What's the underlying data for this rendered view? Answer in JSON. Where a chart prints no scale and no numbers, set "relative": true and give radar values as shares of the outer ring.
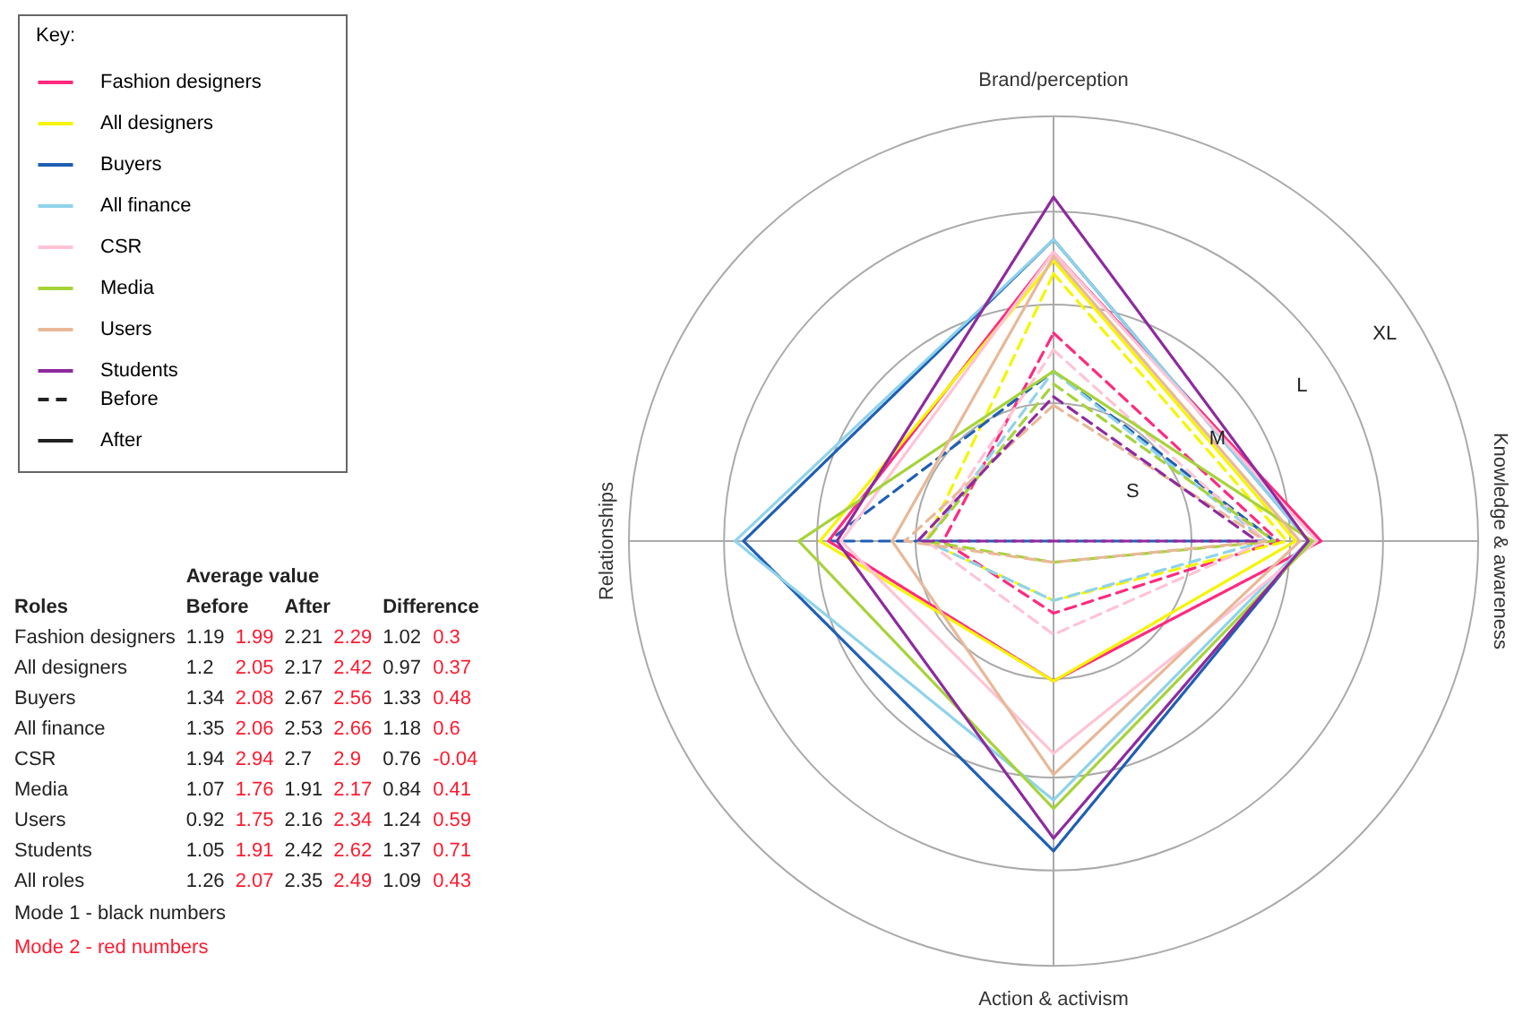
{
  "chart_data": {
    "type": "radar",
    "relative": true,
    "grid": true,
    "legend": "top left",
    "legend_title": "Key:",
    "categories": [
      "Brand/perception",
      "Knowledge & awareness",
      "Action & activism",
      "Relationships"
    ],
    "series": [
      {
        "name": "Fashion designers",
        "color": "#ff2a7f",
        "line_style": "dashed",
        "values": [
          0.49,
          0.53,
          0.17,
          0.26
        ]
      },
      {
        "name": "All designers",
        "color": "#f5f500",
        "line_style": "dashed",
        "values": [
          0.63,
          0.55,
          0.14,
          0.3
        ]
      },
      {
        "name": "Buyers",
        "color": "#1f5fb4",
        "line_style": "dashed",
        "values": [
          0.4,
          0.52,
          0,
          0.53
        ]
      },
      {
        "name": "All finance",
        "color": "#8fd3ea",
        "line_style": "dashed",
        "values": [
          0.4,
          0.5,
          0.14,
          0.3
        ]
      },
      {
        "name": "CSR",
        "color": "#ffc4d4",
        "line_style": "dashed",
        "values": [
          0.45,
          0.5,
          0.22,
          0.3
        ]
      },
      {
        "name": "Media",
        "color": "#a6d33a",
        "line_style": "dashed",
        "values": [
          0.37,
          0.52,
          0.05,
          0.3
        ]
      },
      {
        "name": "Users",
        "color": "#e8b898",
        "line_style": "dashed",
        "values": [
          0.32,
          0.5,
          0.05,
          0.35
        ]
      },
      {
        "name": "Students",
        "color": "#8e2a9e",
        "line_style": "dashed",
        "values": [
          0.34,
          0.48,
          0,
          0.32
        ]
      },
      {
        "color": "#ff2a7f",
        "line_style": "solid",
        "values": [
          0.68,
          0.63,
          0.33,
          0.53
        ]
      },
      {
        "color": "#f5f500",
        "line_style": "solid",
        "values": [
          0.66,
          0.57,
          0.33,
          0.55
        ]
      },
      {
        "color": "#1f5fb4",
        "line_style": "solid",
        "values": [
          0.71,
          0.6,
          0.73,
          0.73
        ]
      },
      {
        "color": "#8fd3ea",
        "line_style": "solid",
        "values": [
          0.71,
          0.6,
          0.61,
          0.75
        ]
      },
      {
        "color": "#ffc4d4",
        "line_style": "solid",
        "values": [
          0.68,
          0.62,
          0.5,
          0.5
        ]
      },
      {
        "color": "#a6d33a",
        "line_style": "solid",
        "values": [
          0.4,
          0.61,
          0.63,
          0.6
        ]
      },
      {
        "color": "#e8b898",
        "line_style": "solid",
        "values": [
          0.67,
          0.58,
          0.55,
          0.38
        ]
      },
      {
        "color": "#8e2a9e",
        "line_style": "solid",
        "values": [
          0.81,
          0.6,
          0.7,
          0.51
        ]
      }
    ],
    "annotations": [
      "Before",
      "After",
      "S",
      "M",
      "L",
      "XL",
      "Average value",
      "Roles",
      "Before",
      "After",
      "Difference",
      "Fashion designers",
      "1.19",
      "1.99",
      "2.21",
      "2.29",
      "1.02",
      "0.3",
      "All designers",
      "1.2",
      "2.05",
      "2.17",
      "2.42",
      "0.97",
      "0.37",
      "Buyers",
      "1.34",
      "2.08",
      "2.67",
      "2.56",
      "1.33",
      "0.48",
      "All finance",
      "1.35",
      "2.06",
      "2.53",
      "2.66",
      "1.18",
      "0.6",
      "CSR",
      "1.94",
      "2.94",
      "2.7",
      "2.9",
      "0.76",
      "-0.04",
      "Media",
      "1.07",
      "1.76",
      "1.91",
      "2.17",
      "0.84",
      "0.41",
      "Users",
      "0.92",
      "1.75",
      "2.16",
      "2.34",
      "1.24",
      "0.59",
      "Students",
      "1.05",
      "1.91",
      "2.42",
      "2.62",
      "1.37",
      "0.71",
      "All roles",
      "1.26",
      "2.07",
      "2.35",
      "2.49",
      "1.09",
      "0.43",
      "Mode 1 - black numbers",
      "Mode 2 - red numbers"
    ]
  }
}
